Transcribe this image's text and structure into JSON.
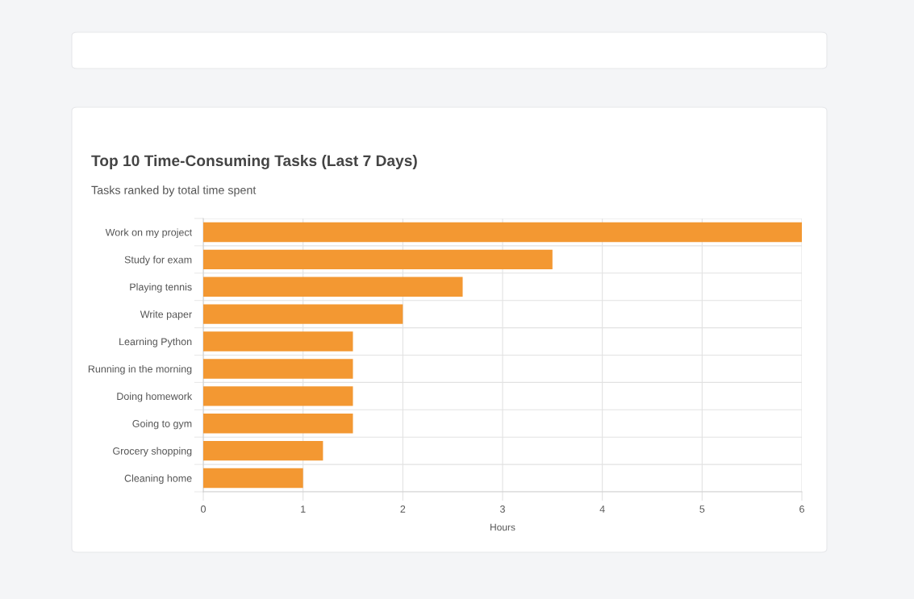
{
  "chart_data": {
    "type": "bar",
    "orientation": "horizontal",
    "title": "Top 10 Time-Consuming Tasks (Last 7 Days)",
    "subtitle": "Tasks ranked by total time spent",
    "xlabel": "Hours",
    "categories": [
      "Work on my project",
      "Study for exam",
      "Playing tennis",
      "Write paper",
      "Learning Python",
      "Running in the morning",
      "Doing homework",
      "Going to gym",
      "Grocery shopping",
      "Cleaning home"
    ],
    "values": [
      6,
      3.5,
      2.6,
      2,
      1.5,
      1.5,
      1.5,
      1.5,
      1.2,
      1
    ],
    "color": "#f39832",
    "xlim": [
      0,
      6
    ],
    "xticks": [
      0,
      1,
      2,
      3,
      4,
      5,
      6
    ],
    "grid": true
  }
}
